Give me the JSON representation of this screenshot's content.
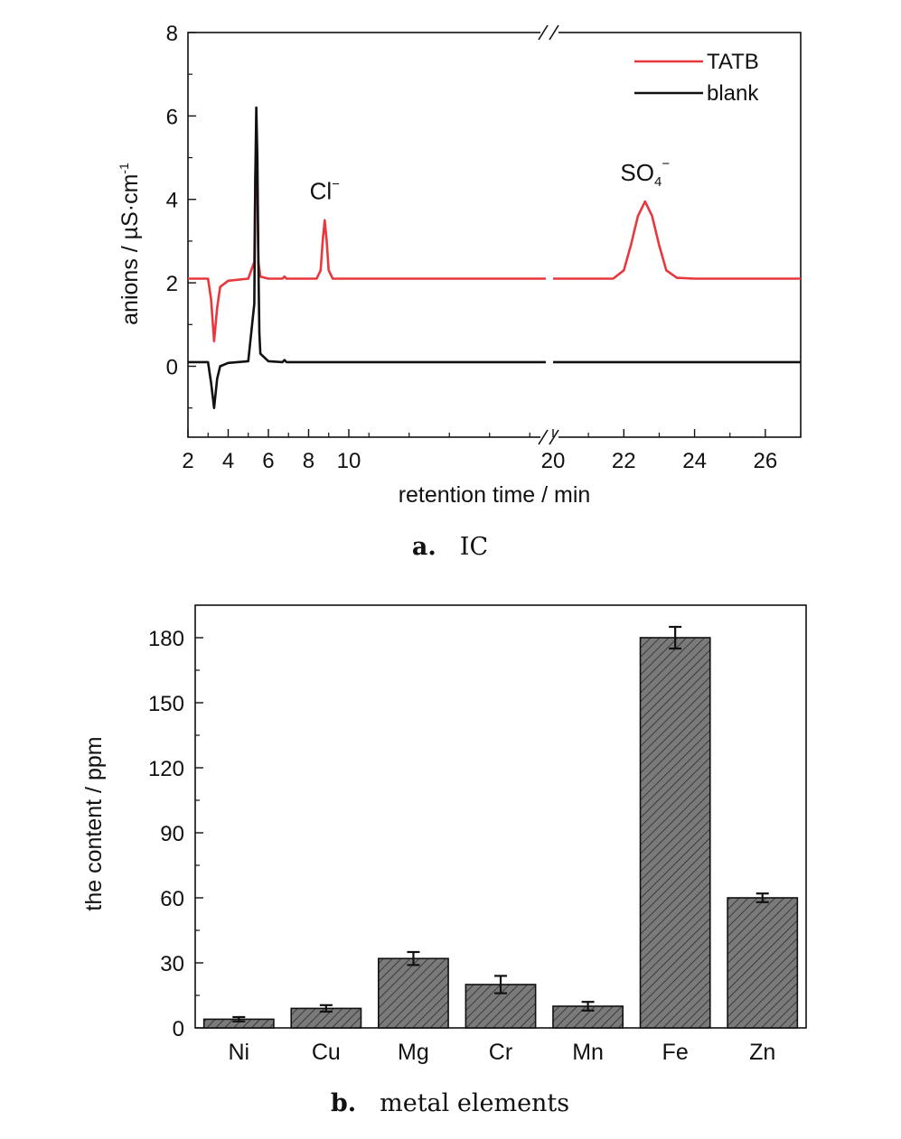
{
  "chart_data": [
    {
      "type": "line",
      "caption": {
        "letter": "a.",
        "text": "IC"
      },
      "xlabel": "retention time / min",
      "ylabel": "anions / µS·cm",
      "ylabel_superscript": "-1",
      "xlim_segments": [
        [
          2,
          19.8
        ],
        [
          20,
          27
        ]
      ],
      "ylim": [
        -1.7,
        8
      ],
      "xticks_left": [
        2,
        4,
        6,
        8,
        10
      ],
      "xticks_right": [
        20,
        22,
        24,
        26
      ],
      "yticks": [
        0,
        2,
        4,
        6,
        8
      ],
      "legend": {
        "position": "top-right",
        "entries": [
          "TATB",
          "blank"
        ]
      },
      "annotations": [
        {
          "text": "Cl",
          "sup": "−",
          "x": 8.8,
          "y": 4.0
        },
        {
          "text": "SO",
          "sub": "4",
          "sup": "−",
          "x": 22.6,
          "y": 4.45
        }
      ],
      "series": [
        {
          "name": "TATB",
          "color": "#e8383d",
          "x": [
            2.0,
            3.0,
            3.15,
            3.3,
            3.45,
            3.6,
            4.0,
            5.0,
            5.3,
            5.35,
            5.4,
            5.45,
            5.5,
            5.6,
            6.0,
            6.7,
            6.8,
            6.9,
            8.4,
            8.6,
            8.7,
            8.8,
            8.9,
            9.0,
            9.2,
            10.0,
            12.0,
            19.8,
            20.0,
            21.7,
            22.0,
            22.2,
            22.4,
            22.6,
            22.8,
            23.0,
            23.2,
            23.5,
            24.0,
            27.0
          ],
          "y": [
            2.1,
            2.1,
            1.6,
            0.6,
            1.4,
            1.9,
            2.05,
            2.1,
            2.5,
            4.5,
            5.5,
            4.2,
            2.5,
            2.15,
            2.1,
            2.1,
            2.15,
            2.1,
            2.1,
            2.3,
            3.0,
            3.5,
            3.0,
            2.3,
            2.1,
            2.1,
            2.1,
            2.1,
            2.1,
            2.1,
            2.3,
            2.9,
            3.6,
            3.95,
            3.6,
            2.9,
            2.3,
            2.12,
            2.1,
            2.1
          ]
        },
        {
          "name": "blank",
          "color": "#111111",
          "x": [
            2.0,
            3.0,
            3.15,
            3.3,
            3.45,
            3.6,
            4.0,
            5.0,
            5.3,
            5.35,
            5.4,
            5.45,
            5.5,
            5.55,
            5.6,
            6.0,
            6.7,
            6.8,
            6.9,
            10.0,
            19.8,
            20.0,
            27.0
          ],
          "y": [
            0.1,
            0.1,
            -0.4,
            -1.0,
            -0.3,
            0.0,
            0.08,
            0.12,
            1.5,
            4.5,
            6.2,
            5.0,
            2.5,
            0.8,
            0.3,
            0.12,
            0.1,
            0.15,
            0.1,
            0.1,
            0.1,
            0.1,
            0.1
          ]
        }
      ]
    },
    {
      "type": "bar",
      "caption": {
        "letter": "b.",
        "text": "metal elements"
      },
      "xlabel": "",
      "ylabel": "the content / ppm",
      "ylim": [
        0,
        195
      ],
      "yticks": [
        0,
        30,
        60,
        90,
        120,
        150,
        180
      ],
      "categories": [
        "Ni",
        "Cu",
        "Mg",
        "Cr",
        "Mn",
        "Fe",
        "Zn"
      ],
      "values": [
        4,
        9,
        32,
        20,
        10,
        180,
        60
      ],
      "errors": [
        1,
        1.5,
        3,
        4,
        2,
        5,
        2
      ],
      "bar_color": "#7a7a7a",
      "hatch_color": "#2a2a2a"
    }
  ]
}
